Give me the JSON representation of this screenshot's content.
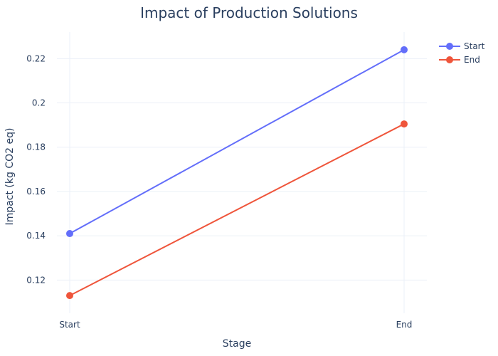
{
  "chart_data": {
    "type": "line",
    "title": "Impact of Production Solutions",
    "xlabel": "Stage",
    "ylabel": "Impact (kg CO2 eq)",
    "categories": [
      "Start",
      "End"
    ],
    "ylim": [
      0.105,
      0.232
    ],
    "yticks": [
      "0.12",
      "0.14",
      "0.16",
      "0.18",
      "0.2",
      "0.22"
    ],
    "grid": true,
    "legend_position": "top-right",
    "series": [
      {
        "name": "Start",
        "color": "#636efa",
        "values": [
          0.141,
          0.224
        ]
      },
      {
        "name": "End",
        "color": "#ef553b",
        "values": [
          0.113,
          0.1905
        ]
      }
    ]
  }
}
